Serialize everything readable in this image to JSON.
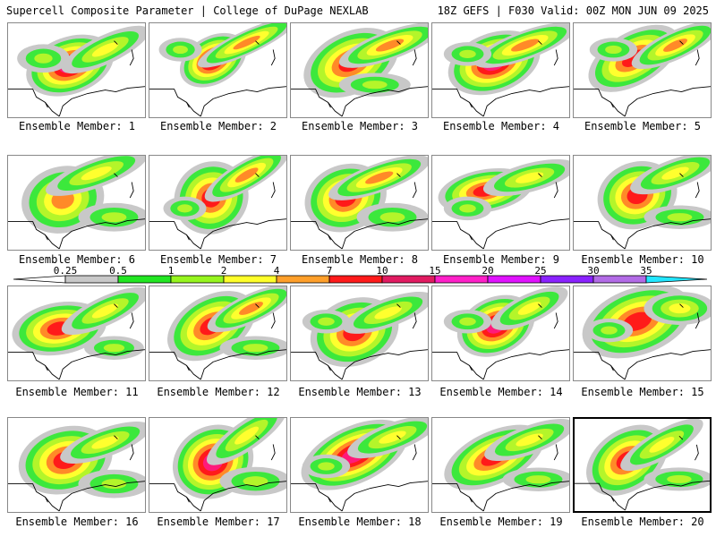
{
  "header": {
    "left": "Supercell Composite Parameter | College of DuPage NEXLAB",
    "right": "18Z GEFS | F030 Valid: 00Z MON JUN 09 2025"
  },
  "legend": {
    "ticks": [
      "0.25",
      "0.5",
      "1",
      "2",
      "4",
      "7",
      "10",
      "15",
      "20",
      "25",
      "30",
      "35"
    ],
    "colors": [
      "#ffffff",
      "#c8c8c8",
      "#22e622",
      "#96f51e",
      "#ffff2a",
      "#ff9f2a",
      "#ff1a1a",
      "#e11b61",
      "#ff20c8",
      "#e012ff",
      "#8a22ff",
      "#b26be6",
      "#22e6ff"
    ]
  },
  "map_colors": {
    "low": "#c8c8c8",
    "green": "#3ce83c",
    "lime": "#b4f52a",
    "yellow": "#ffff2e",
    "orange": "#ff8a28",
    "red": "#ff1a1a",
    "magenta": "#ff1a7a",
    "outline": "#000000"
  },
  "members": [
    {
      "label": "Ensemble Member: 1"
    },
    {
      "label": "Ensemble Member: 2"
    },
    {
      "label": "Ensemble Member: 3"
    },
    {
      "label": "Ensemble Member: 4"
    },
    {
      "label": "Ensemble Member: 5"
    },
    {
      "label": "Ensemble Member: 6"
    },
    {
      "label": "Ensemble Member: 7"
    },
    {
      "label": "Ensemble Member: 8"
    },
    {
      "label": "Ensemble Member: 9"
    },
    {
      "label": "Ensemble Member: 10"
    },
    {
      "label": "Ensemble Member: 11"
    },
    {
      "label": "Ensemble Member: 12"
    },
    {
      "label": "Ensemble Member: 13"
    },
    {
      "label": "Ensemble Member: 14"
    },
    {
      "label": "Ensemble Member: 15"
    },
    {
      "label": "Ensemble Member: 16"
    },
    {
      "label": "Ensemble Member: 17"
    },
    {
      "label": "Ensemble Member: 18"
    },
    {
      "label": "Ensemble Member: 19"
    },
    {
      "label": "Ensemble Member: 20"
    }
  ]
}
